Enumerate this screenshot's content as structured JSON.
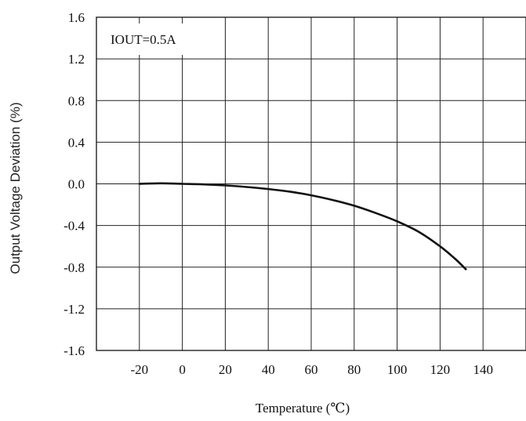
{
  "chart_data": {
    "type": "line",
    "xlabel": "Temperature (℃)",
    "ylabel": "Output Voltage Deviation (%)",
    "annotation": "IOUT=0.5A",
    "xlim": [
      -40,
      160
    ],
    "ylim": [
      -1.6,
      1.6
    ],
    "x_ticks": [
      "-20",
      "0",
      "20",
      "40",
      "60",
      "80",
      "100",
      "120",
      "140"
    ],
    "y_ticks": [
      "1.6",
      "1.2",
      "0.8",
      "0.4",
      "0.0",
      "-0.4",
      "-0.8",
      "-1.2",
      "-1.6"
    ],
    "grid": true,
    "series": [
      {
        "color": "#111111",
        "x": [
          -20,
          -10,
          0,
          10,
          20,
          30,
          40,
          50,
          60,
          70,
          80,
          90,
          100,
          110,
          120,
          127,
          132
        ],
        "y": [
          0.0,
          0.005,
          0.0,
          -0.005,
          -0.015,
          -0.03,
          -0.05,
          -0.075,
          -0.11,
          -0.155,
          -0.21,
          -0.28,
          -0.36,
          -0.46,
          -0.6,
          -0.72,
          -0.82
        ]
      }
    ]
  }
}
